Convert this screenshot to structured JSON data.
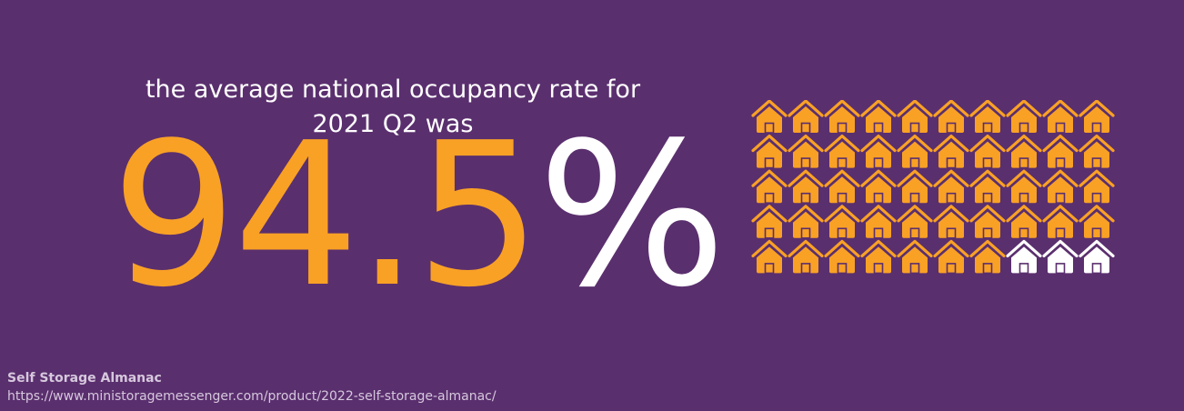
{
  "heading": {
    "line1": "the average national occupancy rate for",
    "line2": "2021 Q2 was"
  },
  "stat": {
    "number": "94.5",
    "unit": "%"
  },
  "chart_data": {
    "type": "pictogram",
    "icon": "house-icon",
    "total": 50,
    "filled": 47,
    "rows": 5,
    "columns": 10,
    "value_percent": 94.5,
    "filled_color": "#f9a125",
    "empty_color": "#ffffff"
  },
  "source": {
    "title": "Self Storage Almanac",
    "url": "https://www.ministoragemessenger.com/product/2022-self-storage-almanac/"
  }
}
